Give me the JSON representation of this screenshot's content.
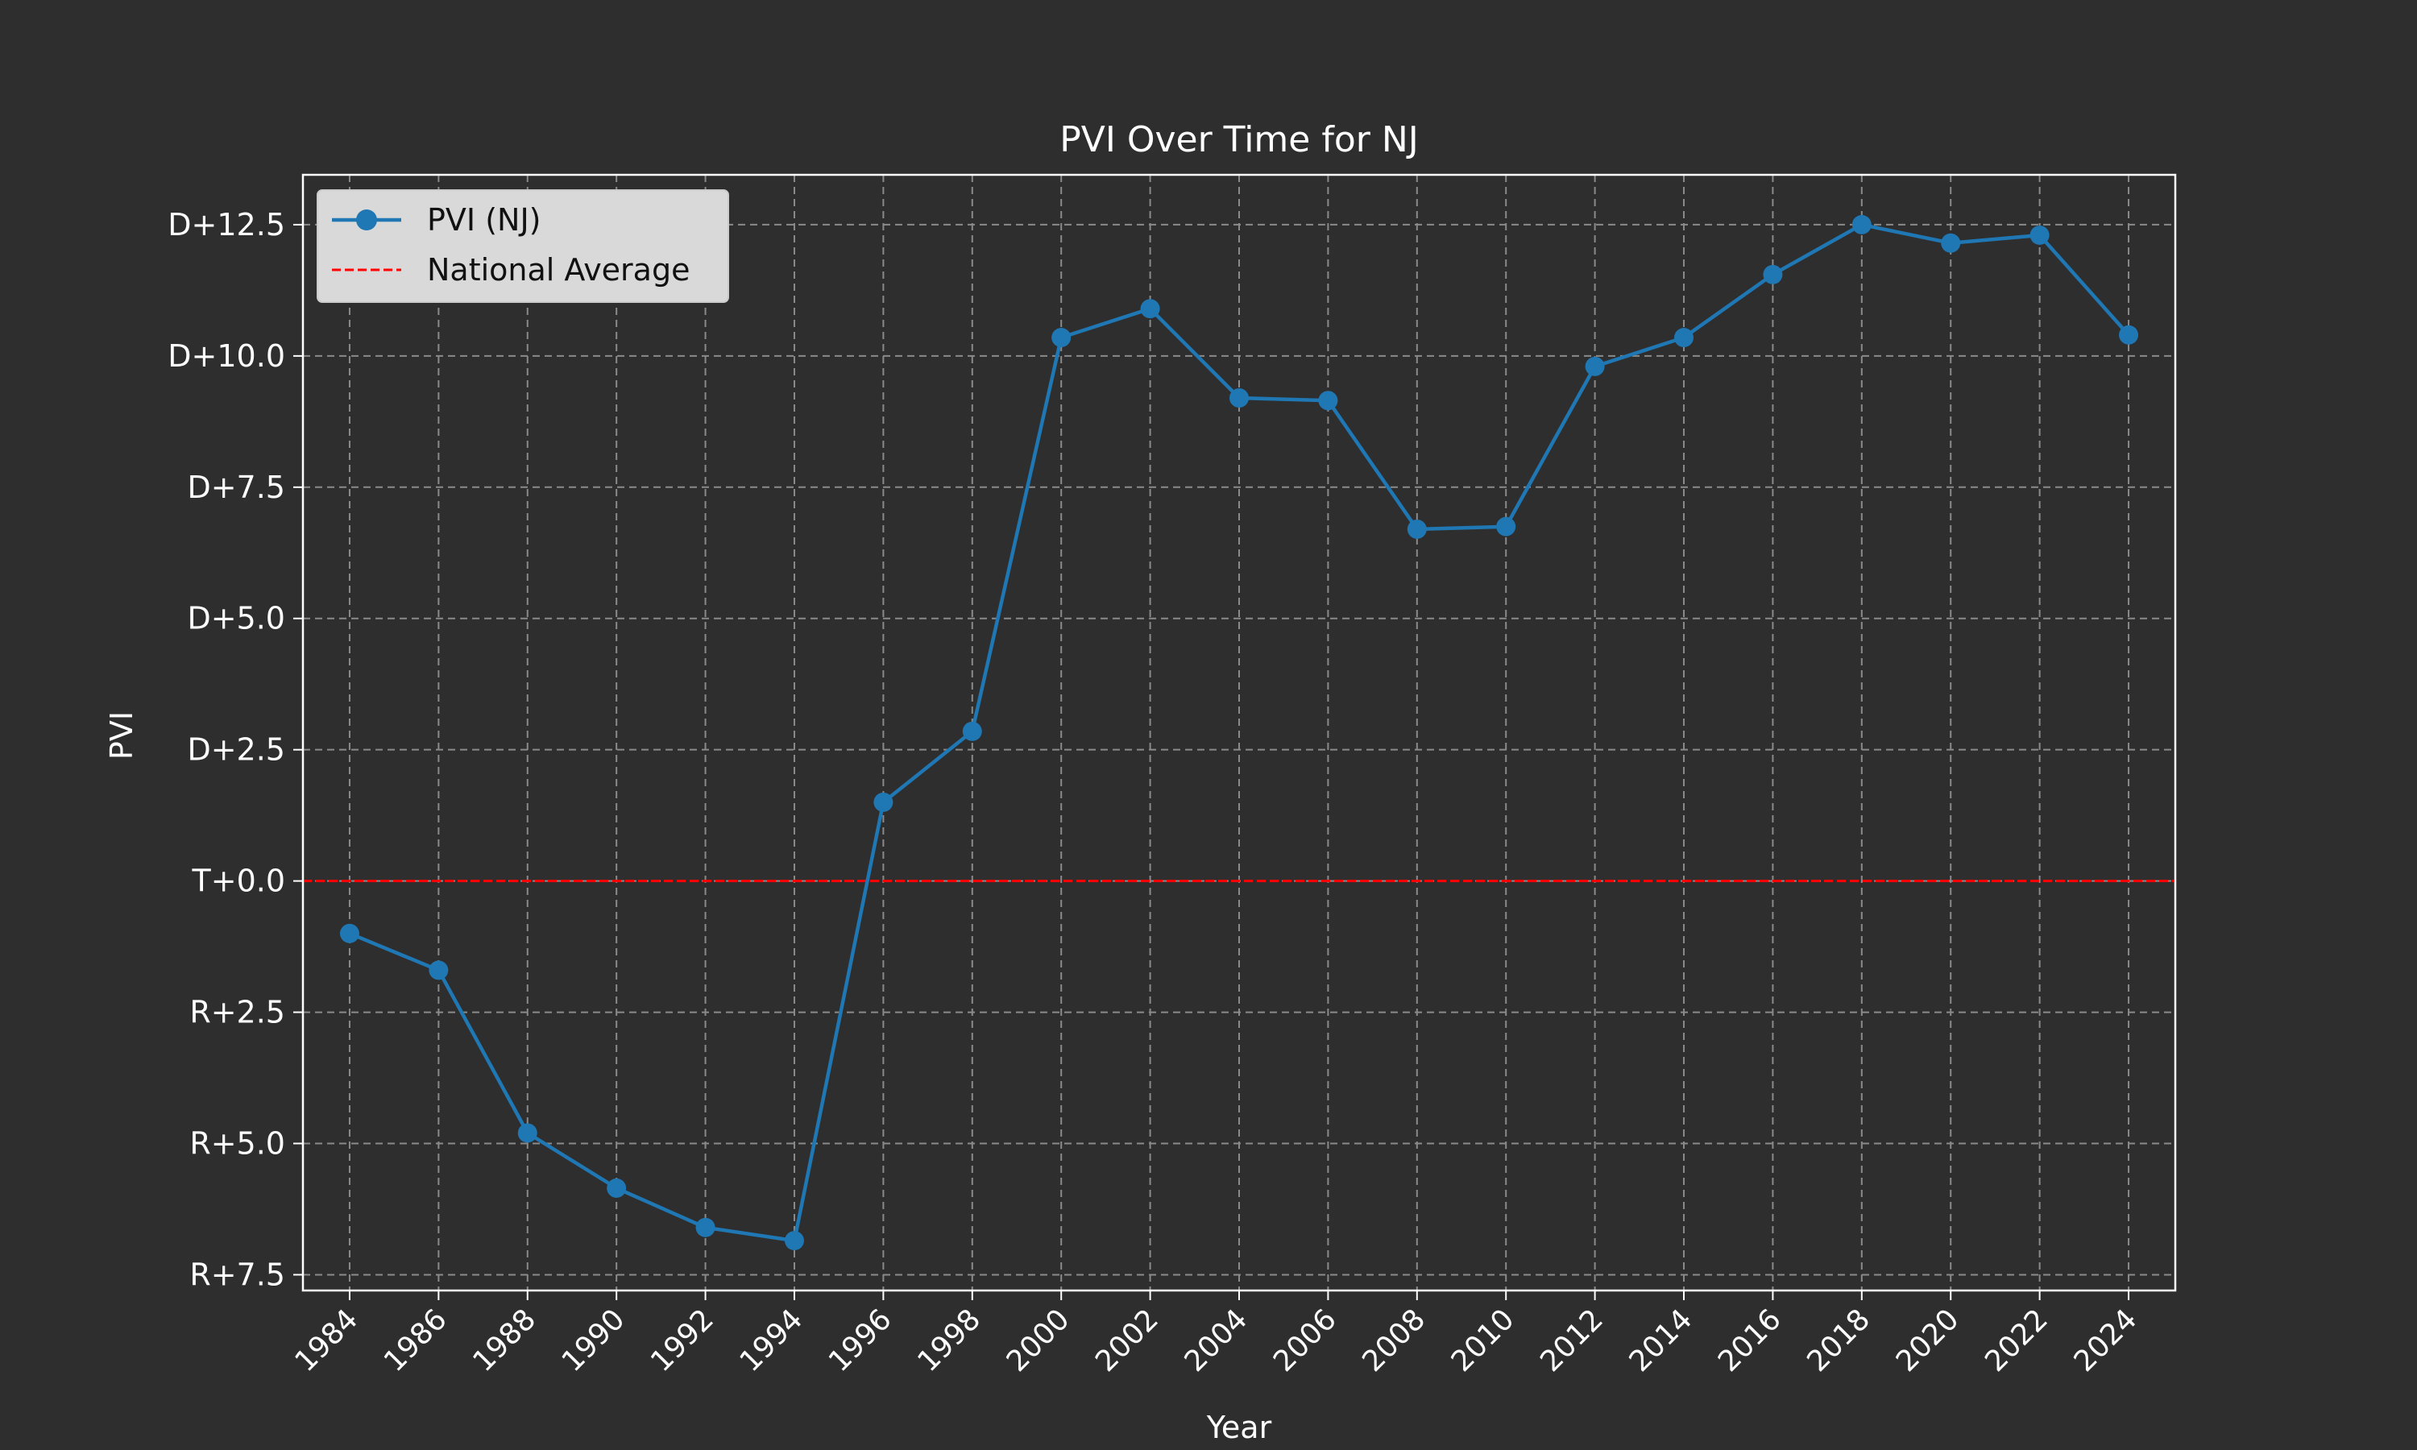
{
  "chart_data": {
    "type": "line",
    "title": "PVI Over Time for NJ",
    "xlabel": "Year",
    "ylabel": "PVI",
    "x": [
      1984,
      1986,
      1988,
      1990,
      1992,
      1994,
      1996,
      1998,
      2000,
      2002,
      2004,
      2006,
      2008,
      2010,
      2012,
      2014,
      2016,
      2018,
      2020,
      2022,
      2024
    ],
    "series": [
      {
        "name": "PVI (NJ)",
        "color": "#1f77b4",
        "values": [
          -1.0,
          -1.7,
          -4.8,
          -5.85,
          -6.6,
          -6.85,
          1.5,
          2.85,
          10.35,
          10.9,
          9.2,
          9.15,
          6.7,
          6.75,
          9.8,
          10.35,
          11.55,
          12.5,
          12.15,
          12.3,
          10.4
        ]
      }
    ],
    "reference_line": {
      "name": "National Average",
      "value": 0,
      "color": "#ff0000",
      "style": "dashed"
    },
    "yticks": [
      {
        "value": 12.5,
        "label": "D+12.5"
      },
      {
        "value": 10.0,
        "label": "D+10.0"
      },
      {
        "value": 7.5,
        "label": "D+7.5"
      },
      {
        "value": 5.0,
        "label": "D+5.0"
      },
      {
        "value": 2.5,
        "label": "D+2.5"
      },
      {
        "value": 0.0,
        "label": "T+0.0"
      },
      {
        "value": -2.5,
        "label": "R+2.5"
      },
      {
        "value": -5.0,
        "label": "R+5.0"
      },
      {
        "value": -7.5,
        "label": "R+7.5"
      }
    ],
    "xlim": [
      1982.95,
      2025.05
    ],
    "ylim": [
      -7.8,
      13.45
    ],
    "grid": true,
    "legend_position": "top-left",
    "background_color": "#2e2e2e",
    "text_color": "#ffffff"
  }
}
